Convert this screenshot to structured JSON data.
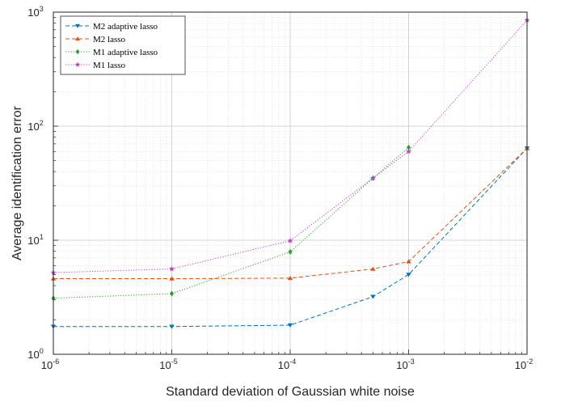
{
  "chart_data": {
    "type": "line",
    "xlabel": "Standard deviation of Gaussian white noise",
    "ylabel": "Average identification error",
    "xscale": "log",
    "yscale": "log",
    "xlim": [
      1e-06,
      0.01
    ],
    "ylim": [
      1,
      1000
    ],
    "grid": true,
    "minor_grid": true,
    "legend_position": "top-left",
    "x_tick_labels": [
      {
        "base": "10",
        "exp": "-6"
      },
      {
        "base": "10",
        "exp": "-5"
      },
      {
        "base": "10",
        "exp": "-4"
      },
      {
        "base": "10",
        "exp": "-3"
      },
      {
        "base": "10",
        "exp": "-2"
      }
    ],
    "y_tick_labels": [
      {
        "base": "10",
        "exp": "0"
      },
      {
        "base": "10",
        "exp": "1"
      },
      {
        "base": "10",
        "exp": "2"
      },
      {
        "base": "10",
        "exp": "3"
      }
    ],
    "x_tick_values": [
      1e-06,
      1e-05,
      0.0001,
      0.001,
      0.01
    ],
    "y_tick_values": [
      1,
      10,
      100,
      1000
    ],
    "series": [
      {
        "name": "M2 adaptive lasso",
        "color": "#0072BD",
        "dash": "dashed",
        "marker": "triangle-down",
        "x": [
          1e-06,
          1e-05,
          0.0001,
          0.0005,
          0.001,
          0.01
        ],
        "y": [
          1.75,
          1.75,
          1.8,
          3.2,
          5.0,
          64
        ]
      },
      {
        "name": "M2 lasso",
        "color": "#D95319",
        "dash": "dashed",
        "marker": "triangle-up",
        "x": [
          1e-06,
          1e-05,
          0.0001,
          0.0005,
          0.001,
          0.01
        ],
        "y": [
          4.6,
          4.6,
          4.65,
          5.6,
          6.5,
          64
        ]
      },
      {
        "name": "M1 adaptive lasso",
        "color": "#2CA02C",
        "dash": "dotted",
        "marker": "diamond",
        "x": [
          1e-06,
          1e-05,
          0.0001,
          0.0005,
          0.001
        ],
        "y": [
          3.1,
          3.4,
          7.9,
          35,
          65
        ]
      },
      {
        "name": "M1 lasso",
        "color": "#C042C0",
        "dash": "dotted",
        "marker": "star",
        "x": [
          1e-06,
          1e-05,
          0.0001,
          0.0005,
          0.001,
          0.01
        ],
        "y": [
          5.2,
          5.6,
          9.9,
          35,
          60,
          850
        ]
      }
    ]
  }
}
